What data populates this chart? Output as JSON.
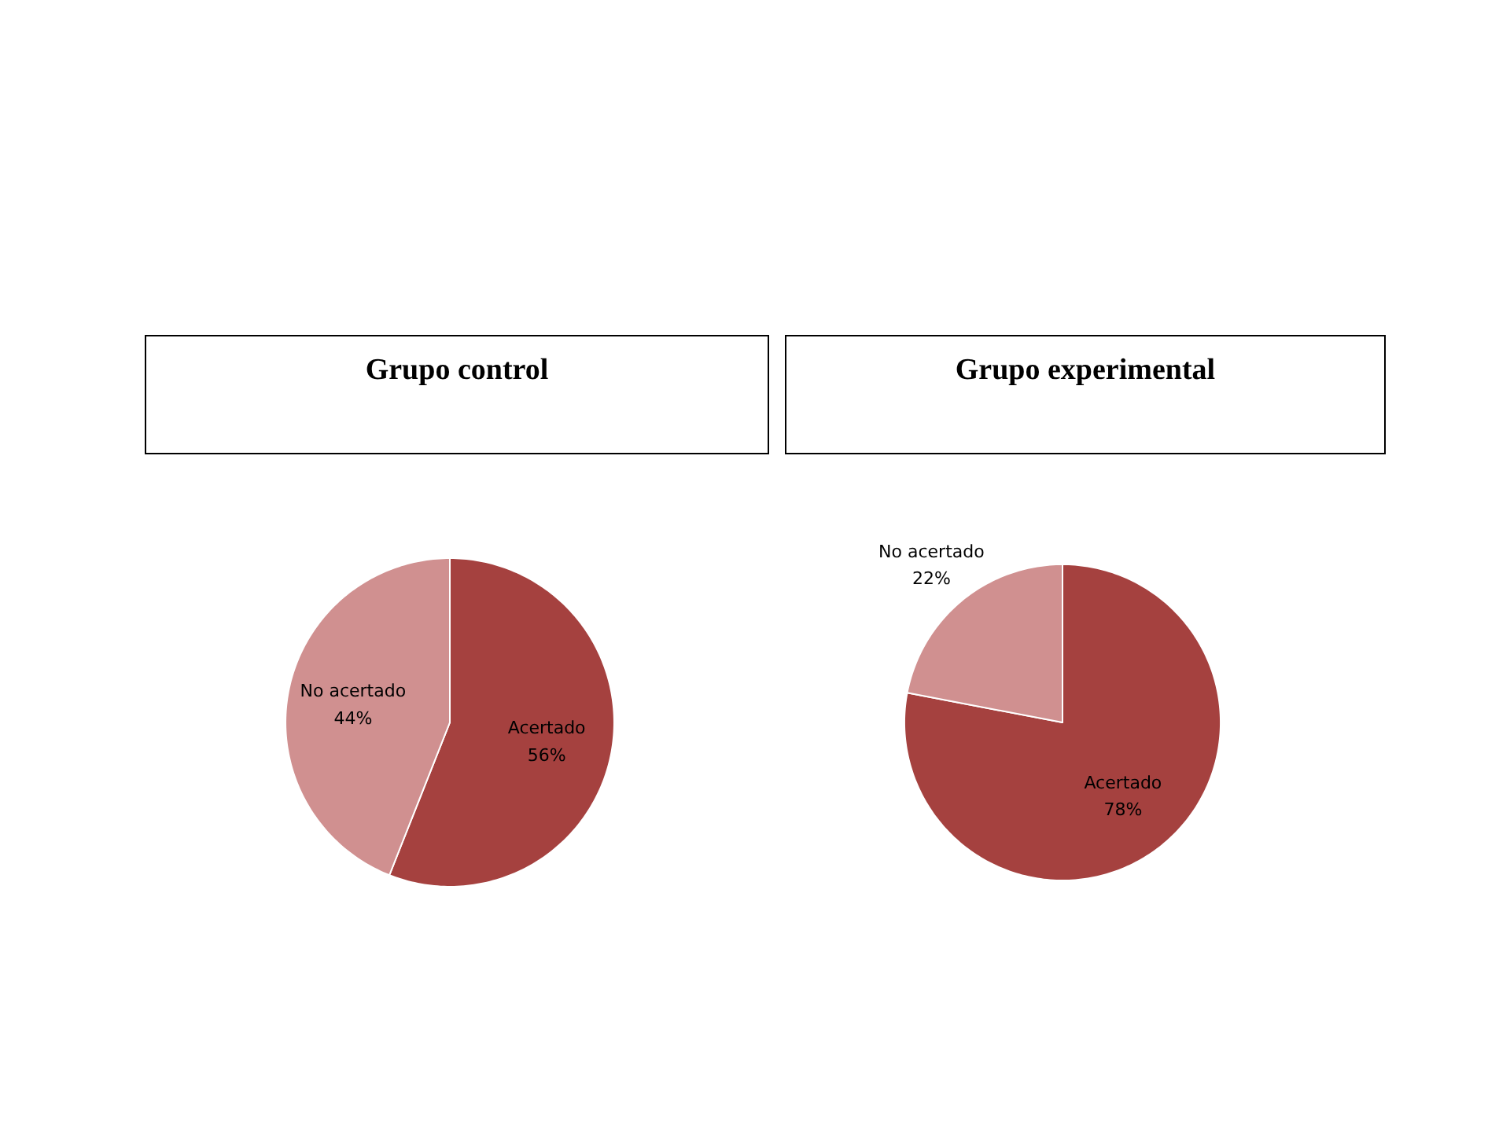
{
  "chart_data": [
    {
      "type": "pie",
      "title": "Grupo control",
      "categories": [
        "Acertado",
        "No acertado"
      ],
      "values": [
        56,
        44
      ],
      "value_labels": [
        "56%",
        "44%"
      ],
      "colors": [
        "#a5413f",
        "#d09090"
      ]
    },
    {
      "type": "pie",
      "title": "Grupo experimental",
      "categories": [
        "Acertado",
        "No acertado"
      ],
      "values": [
        78,
        22
      ],
      "value_labels": [
        "78%",
        "22%"
      ],
      "colors": [
        "#a5413f",
        "#d09090"
      ]
    }
  ]
}
